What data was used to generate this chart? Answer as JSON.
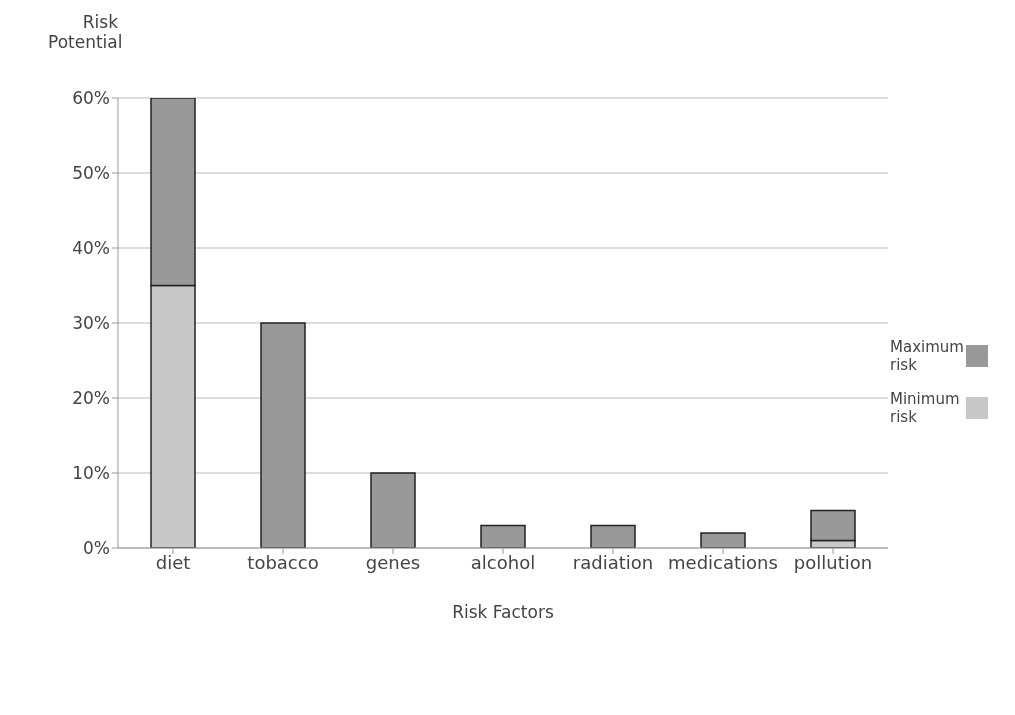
{
  "chart_data": {
    "type": "bar",
    "stacked": true,
    "ylabel": "Risk Potential",
    "xlabel": "Risk Factors",
    "categories": [
      "diet",
      "tobacco",
      "genes",
      "alcohol",
      "radiation",
      "medications",
      "pollution"
    ],
    "series": [
      {
        "name": "Minimum risk",
        "color": "#c8c8c8",
        "values": [
          35,
          null,
          null,
          null,
          null,
          null,
          1
        ]
      },
      {
        "name": "Maximum risk",
        "color": "#999999",
        "values": [
          25,
          30,
          10,
          3,
          3,
          2,
          4
        ]
      }
    ],
    "ylim": [
      0,
      60
    ],
    "yticks": [
      {
        "value": 0,
        "label": "0%"
      },
      {
        "value": 10,
        "label": "10%"
      },
      {
        "value": 20,
        "label": "20%"
      },
      {
        "value": 30,
        "label": "30%"
      },
      {
        "value": 40,
        "label": "40%"
      },
      {
        "value": 50,
        "label": "50%"
      },
      {
        "value": 60,
        "label": "60%"
      }
    ],
    "grid": "y",
    "legend": "right"
  }
}
